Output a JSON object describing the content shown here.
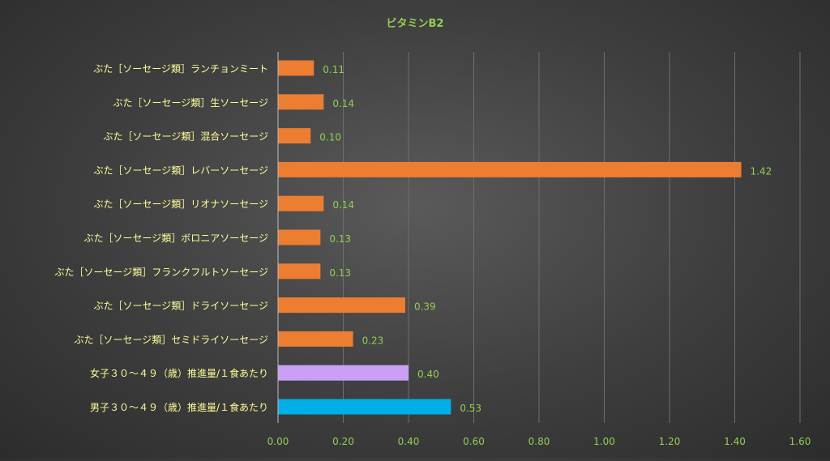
{
  "chart_data": {
    "type": "bar",
    "orientation": "horizontal",
    "title": "ビタミンB2",
    "xlim": [
      0,
      1.6
    ],
    "xticks": [
      0.0,
      0.2,
      0.4,
      0.6,
      0.8,
      1.0,
      1.2,
      1.4,
      1.6
    ],
    "xtick_labels": [
      "0.00",
      "0.20",
      "0.40",
      "0.60",
      "0.80",
      "1.00",
      "1.20",
      "1.40",
      "1.60"
    ],
    "grid": "vertical",
    "legend": "none",
    "categories": [
      "ぶた［ソーセージ類］ランチョンミート",
      "ぶた［ソーセージ類］生ソーセージ",
      "ぶた［ソーセージ類］混合ソーセージ",
      "ぶた［ソーセージ類］レバーソーセージ",
      "ぶた［ソーセージ類］リオナソーセージ",
      "ぶた［ソーセージ類］ボロニアソーセージ",
      "ぶた［ソーセージ類］フランクフルトソーセージ",
      "ぶた［ソーセージ類］ドライソーセージ",
      "ぶた［ソーセージ類］セミドライソーセージ",
      "女子３０～４９（歳）推進量/１食あたり",
      "男子３０～４９（歳）推進量/１食あたり"
    ],
    "values": [
      0.11,
      0.14,
      0.1,
      1.42,
      0.14,
      0.13,
      0.13,
      0.39,
      0.23,
      0.4,
      0.53
    ],
    "value_labels": [
      "0.11",
      "0.14",
      "0.10",
      "1.42",
      "0.14",
      "0.13",
      "0.13",
      "0.39",
      "0.23",
      "0.40",
      "0.53"
    ],
    "bar_colors": [
      "#ed7d31",
      "#ed7d31",
      "#ed7d31",
      "#ed7d31",
      "#ed7d31",
      "#ed7d31",
      "#ed7d31",
      "#ed7d31",
      "#ed7d31",
      "#c9a0f5",
      "#00aee8"
    ],
    "colors": {
      "title": "#92d050",
      "category_label": "#ffff99",
      "value_label": "#92d050",
      "tick_label": "#92d050",
      "gridline": "#6e6e6e",
      "axis_line": "#bfbfbf"
    }
  }
}
